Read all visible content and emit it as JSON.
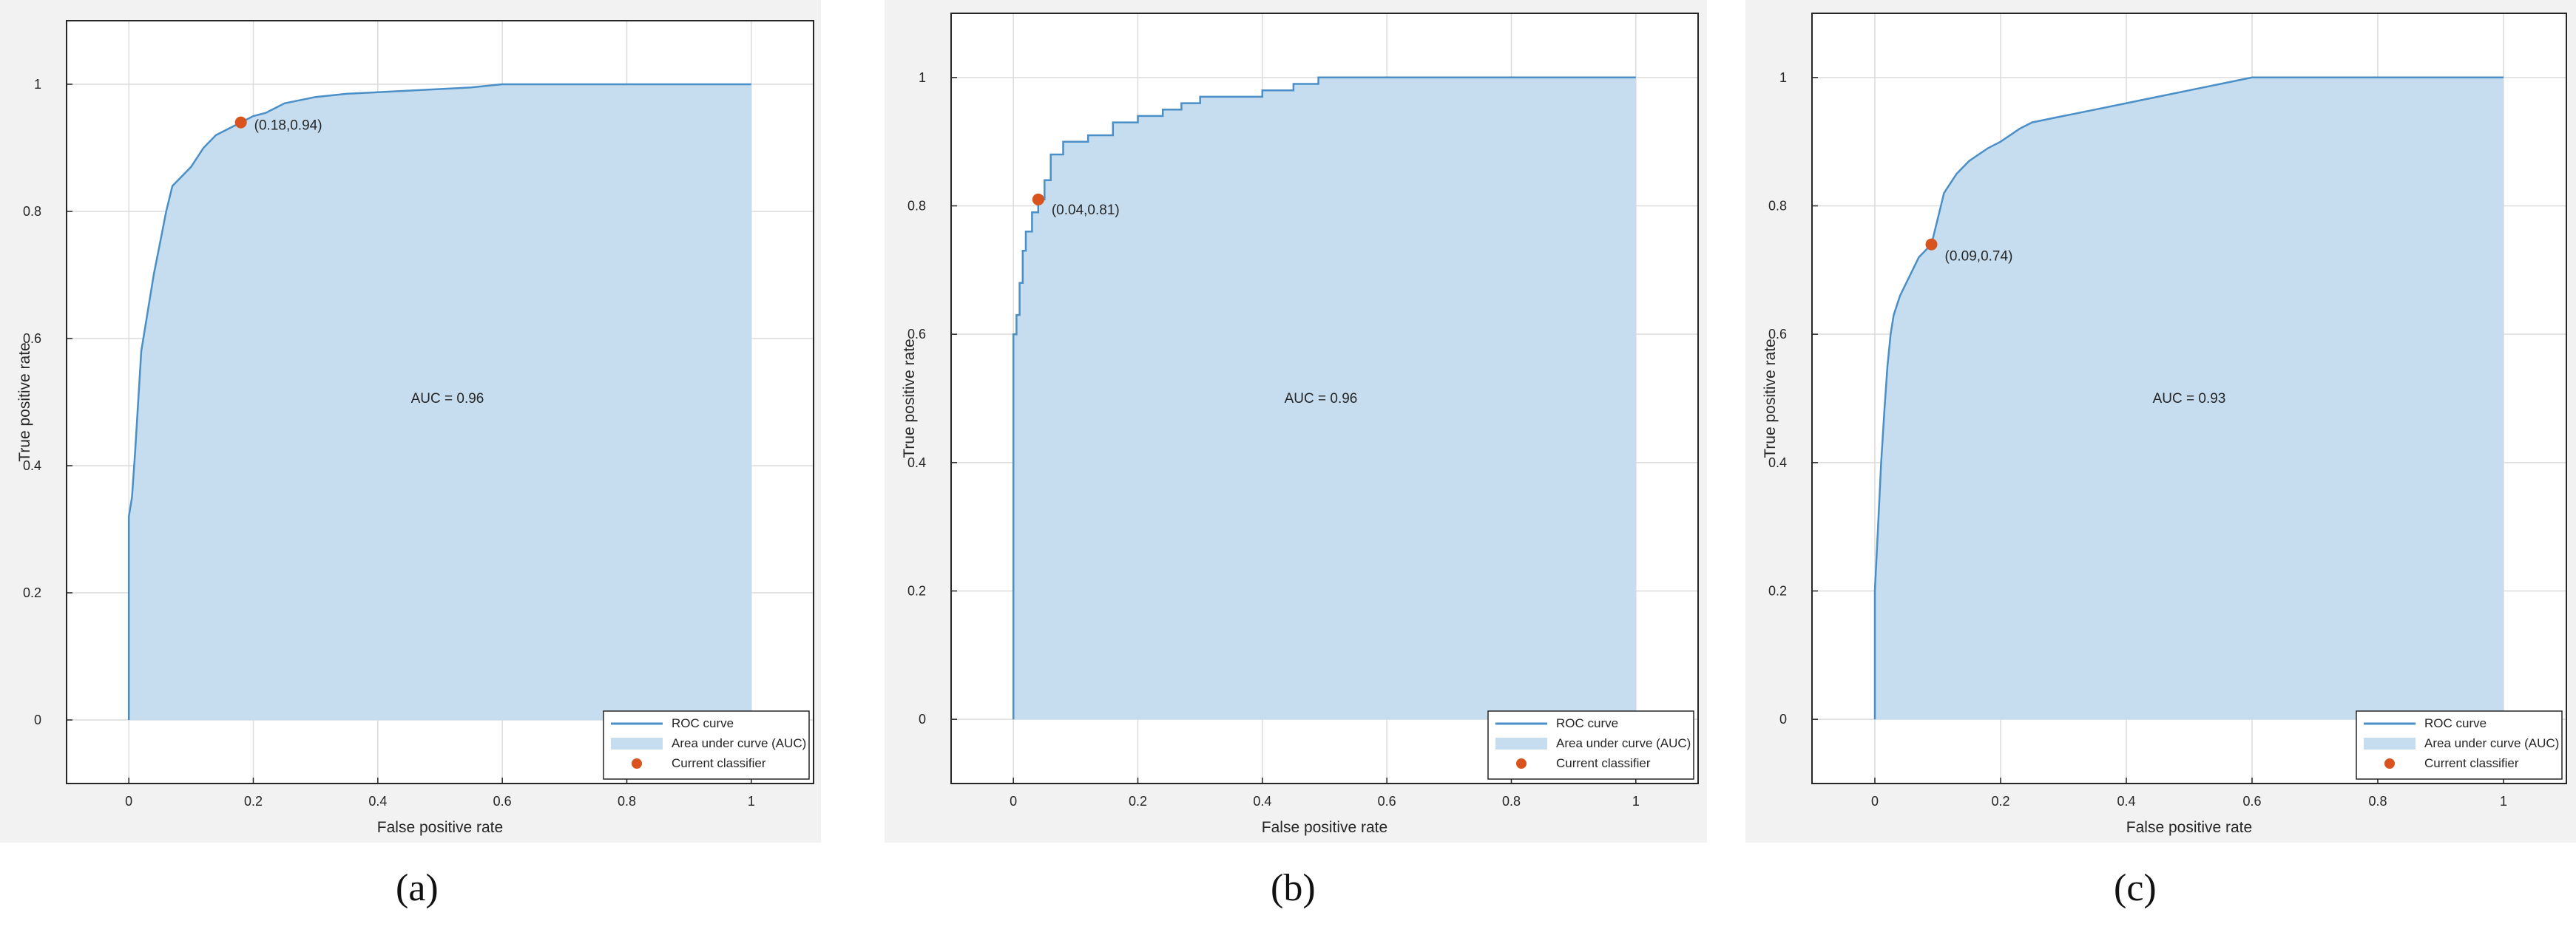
{
  "colors": {
    "curve": "#4a8fc7",
    "area": "#c5ddef",
    "point": "#d9531e"
  },
  "chart_data": [
    {
      "type": "area",
      "caption": "(a)",
      "xlabel": "False positive rate",
      "ylabel": "True positive rate",
      "xlim": [
        -0.1,
        1.1
      ],
      "ylim": [
        -0.1,
        1.1
      ],
      "xticks": [
        0,
        0.2,
        0.4,
        0.6,
        0.8,
        1
      ],
      "xtick_labels": [
        "0",
        "0.2",
        "0.4",
        "0.6",
        "0.8",
        "1"
      ],
      "yticks": [
        0,
        0.2,
        0.4,
        0.6,
        0.8,
        1
      ],
      "ytick_labels": [
        "0",
        "0.2",
        "0.4",
        "0.6",
        "0.8",
        "1"
      ],
      "grid": true,
      "auc_label": "AUC = 0.96",
      "point": {
        "x": 0.18,
        "y": 0.94,
        "label": "(0.18,0.94)"
      },
      "legend": {
        "position": "bottom-right",
        "entries": [
          "ROC curve",
          "Area under curve (AUC)",
          "Current classifier"
        ]
      },
      "series": [
        {
          "name": "ROC curve",
          "x": [
            0,
            0,
            0.005,
            0.01,
            0.015,
            0.02,
            0.03,
            0.04,
            0.05,
            0.06,
            0.07,
            0.08,
            0.1,
            0.12,
            0.14,
            0.16,
            0.18,
            0.2,
            0.22,
            0.25,
            0.3,
            0.35,
            0.45,
            0.55,
            0.6,
            0.7,
            0.8,
            0.9,
            1
          ],
          "y": [
            0,
            0.32,
            0.35,
            0.42,
            0.5,
            0.58,
            0.64,
            0.7,
            0.75,
            0.8,
            0.84,
            0.85,
            0.87,
            0.9,
            0.92,
            0.93,
            0.94,
            0.95,
            0.955,
            0.97,
            0.98,
            0.985,
            0.99,
            0.995,
            1,
            1,
            1,
            1,
            1
          ]
        }
      ]
    },
    {
      "type": "area",
      "caption": "(b)",
      "xlabel": "False positive rate",
      "ylabel": "True positive rate",
      "xlim": [
        -0.1,
        1.1
      ],
      "ylim": [
        -0.1,
        1.1
      ],
      "xticks": [
        0,
        0.2,
        0.4,
        0.6,
        0.8,
        1
      ],
      "xtick_labels": [
        "0",
        "0.2",
        "0.4",
        "0.6",
        "0.8",
        "1"
      ],
      "yticks": [
        0,
        0.2,
        0.4,
        0.6,
        0.8,
        1
      ],
      "ytick_labels": [
        "0",
        "0.2",
        "0.4",
        "0.6",
        "0.8",
        "1"
      ],
      "grid": true,
      "auc_label": "AUC = 0.96",
      "point": {
        "x": 0.04,
        "y": 0.81,
        "label": "(0.04,0.81)"
      },
      "legend": {
        "position": "bottom-right",
        "entries": [
          "ROC curve",
          "Area under curve (AUC)",
          "Current classifier"
        ]
      },
      "series": [
        {
          "name": "ROC curve",
          "x": [
            0,
            0,
            0.005,
            0.005,
            0.01,
            0.01,
            0.015,
            0.015,
            0.02,
            0.02,
            0.03,
            0.03,
            0.04,
            0.04,
            0.05,
            0.05,
            0.06,
            0.06,
            0.08,
            0.08,
            0.12,
            0.12,
            0.16,
            0.16,
            0.2,
            0.2,
            0.24,
            0.24,
            0.27,
            0.27,
            0.3,
            0.3,
            0.4,
            0.4,
            0.45,
            0.45,
            0.49,
            0.49,
            1
          ],
          "y": [
            0,
            0.6,
            0.6,
            0.63,
            0.63,
            0.68,
            0.68,
            0.73,
            0.73,
            0.76,
            0.76,
            0.79,
            0.79,
            0.81,
            0.81,
            0.84,
            0.84,
            0.88,
            0.88,
            0.9,
            0.9,
            0.91,
            0.91,
            0.93,
            0.93,
            0.94,
            0.94,
            0.95,
            0.95,
            0.96,
            0.96,
            0.97,
            0.97,
            0.98,
            0.98,
            0.99,
            0.99,
            1,
            1
          ]
        }
      ]
    },
    {
      "type": "area",
      "caption": "(c)",
      "xlabel": "False positive rate",
      "ylabel": "True positive rate",
      "xlim": [
        -0.1,
        1.1
      ],
      "ylim": [
        -0.1,
        1.1
      ],
      "xticks": [
        0,
        0.2,
        0.4,
        0.6,
        0.8,
        1
      ],
      "xtick_labels": [
        "0",
        "0.2",
        "0.4",
        "0.6",
        "0.8",
        "1"
      ],
      "yticks": [
        0,
        0.2,
        0.4,
        0.6,
        0.8,
        1
      ],
      "ytick_labels": [
        "0",
        "0.2",
        "0.4",
        "0.6",
        "0.8",
        "1"
      ],
      "grid": true,
      "auc_label": "AUC = 0.93",
      "point": {
        "x": 0.09,
        "y": 0.74,
        "label": "(0.09,0.74)"
      },
      "legend": {
        "position": "bottom-right",
        "entries": [
          "ROC curve",
          "Area under curve (AUC)",
          "Current classifier"
        ]
      },
      "series": [
        {
          "name": "ROC curve",
          "x": [
            0,
            0,
            0.005,
            0.01,
            0.015,
            0.02,
            0.025,
            0.03,
            0.04,
            0.05,
            0.06,
            0.07,
            0.08,
            0.09,
            0.1,
            0.11,
            0.13,
            0.15,
            0.18,
            0.2,
            0.23,
            0.25,
            0.3,
            0.35,
            0.4,
            0.45,
            0.5,
            0.55,
            0.6,
            0.7,
            0.8,
            0.9,
            1
          ],
          "y": [
            0,
            0.2,
            0.3,
            0.4,
            0.48,
            0.55,
            0.6,
            0.63,
            0.66,
            0.68,
            0.7,
            0.72,
            0.73,
            0.74,
            0.78,
            0.82,
            0.85,
            0.87,
            0.89,
            0.9,
            0.92,
            0.93,
            0.94,
            0.95,
            0.96,
            0.97,
            0.98,
            0.99,
            1,
            1,
            1,
            1,
            1
          ]
        }
      ]
    }
  ]
}
